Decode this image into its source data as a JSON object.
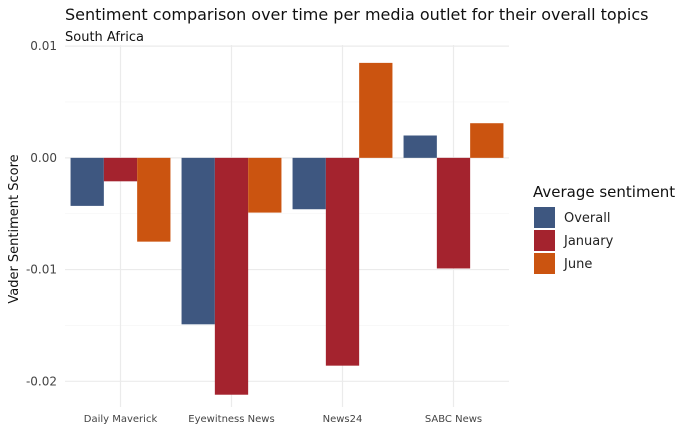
{
  "chart_data": {
    "type": "bar",
    "title": "Sentiment comparison over time per media outlet for their overall topics",
    "subtitle": "South Africa",
    "xlabel": "",
    "ylabel": "Vader Sentiment Score",
    "categories": [
      "Daily Maverick",
      "Eyewitness News",
      "News24",
      "SABC News"
    ],
    "series": [
      {
        "name": "Overall",
        "color": "#3e5780",
        "values": [
          -0.0043,
          -0.0149,
          -0.0046,
          0.002
        ]
      },
      {
        "name": "January",
        "color": "#a4232e",
        "values": [
          -0.0021,
          -0.0212,
          -0.0186,
          -0.0099
        ]
      },
      {
        "name": "June",
        "color": "#cb5410",
        "values": [
          -0.0075,
          -0.0049,
          0.0085,
          0.0031
        ]
      }
    ],
    "ylim": [
      -0.0223,
      0.0101
    ],
    "yticks": [
      0.01,
      0.0,
      -0.01,
      -0.02
    ],
    "ytick_labels": [
      "0.01",
      "0.00",
      "-0.01",
      "-0.02"
    ],
    "grid": true,
    "legend_title": "Average sentiment",
    "legend_position": "right"
  }
}
